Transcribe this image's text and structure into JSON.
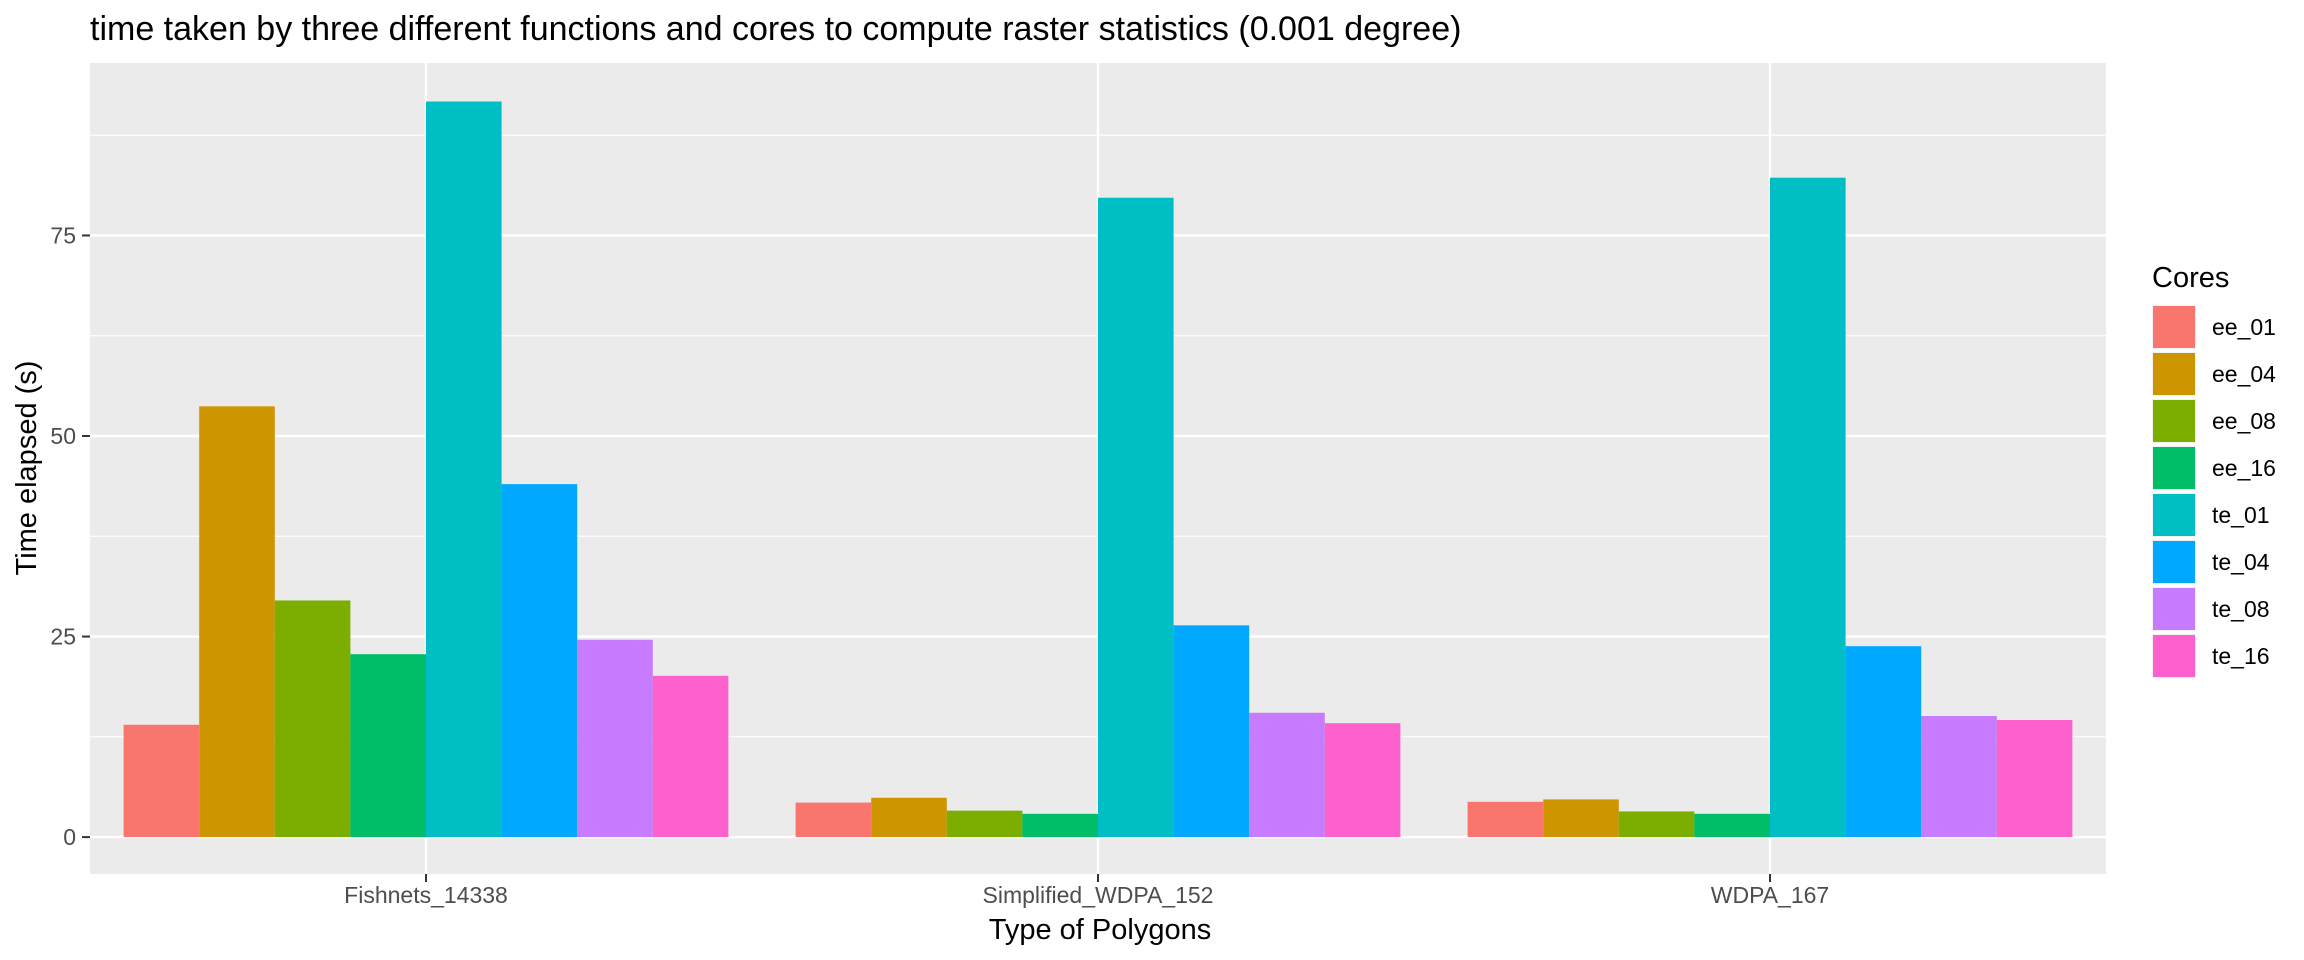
{
  "chart_data": {
    "type": "bar",
    "title": "time taken by three different functions and cores to compute raster statistics (0.001 degree)",
    "xlabel": "Type of Polygons",
    "ylabel": "Time elapsed (s)",
    "categories": [
      "Fishnets_14338",
      "Simplified_WDPA_152",
      "WDPA_167"
    ],
    "yticks": [
      0,
      25,
      50,
      75
    ],
    "ylim": [
      -4.6,
      96.5
    ],
    "grid": true,
    "legend": {
      "title": "Cores",
      "position": "right"
    },
    "series": [
      {
        "name": "ee_01",
        "color": "#F8766D",
        "values": [
          14.0,
          4.3,
          4.4
        ]
      },
      {
        "name": "ee_04",
        "color": "#CD9600",
        "values": [
          53.7,
          4.9,
          4.7
        ]
      },
      {
        "name": "ee_08",
        "color": "#7CAE00",
        "values": [
          29.5,
          3.3,
          3.2
        ]
      },
      {
        "name": "ee_16",
        "color": "#00BE67",
        "values": [
          22.8,
          2.9,
          2.9
        ]
      },
      {
        "name": "te_01",
        "color": "#00BFC4",
        "values": [
          91.7,
          79.7,
          82.2
        ]
      },
      {
        "name": "te_04",
        "color": "#00A9FF",
        "values": [
          44.0,
          26.4,
          23.8
        ]
      },
      {
        "name": "te_08",
        "color": "#C77CFF",
        "values": [
          24.6,
          15.5,
          15.1
        ]
      },
      {
        "name": "te_16",
        "color": "#FF61CC",
        "values": [
          20.1,
          14.2,
          14.6
        ]
      }
    ]
  }
}
